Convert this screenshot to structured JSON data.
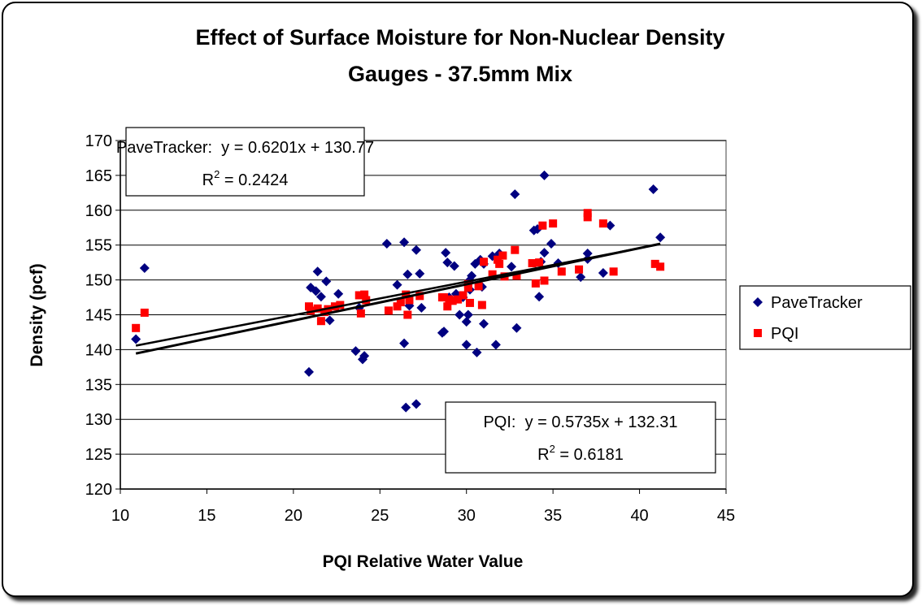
{
  "chart_data": {
    "type": "scatter",
    "title": [
      "Effect of Surface Moisture for Non-Nuclear Density",
      "Gauges - 37.5mm Mix"
    ],
    "x_label": "PQI Relative Water Value",
    "y_label": "Density (pcf)",
    "xlim": [
      10,
      45
    ],
    "xticks": [
      10,
      15,
      20,
      25,
      30,
      35,
      40,
      45
    ],
    "ylim": [
      120,
      170
    ],
    "yticks": [
      120,
      125,
      130,
      135,
      140,
      145,
      150,
      155,
      160,
      165,
      170
    ],
    "grid": true,
    "legend": "right",
    "trendline": "linear",
    "series": [
      {
        "name": "PaveTracker",
        "color": "#000080",
        "marker": "diamond",
        "x": [
          10.9,
          11.4,
          20.9,
          21.0,
          21.3,
          21.4,
          21.6,
          21.9,
          22.1,
          22.6,
          23.6,
          23.8,
          24.0,
          24.1,
          25.4,
          26.0,
          26.4,
          26.4,
          26.5,
          26.6,
          26.7,
          27.1,
          27.1,
          27.3,
          27.4,
          28.6,
          28.7,
          28.8,
          28.9,
          29.3,
          29.4,
          29.6,
          29.8,
          30.0,
          30.0,
          30.1,
          30.2,
          30.3,
          30.5,
          30.6,
          30.8,
          30.9,
          31.0,
          31.0,
          31.5,
          31.7,
          31.9,
          32.6,
          32.8,
          32.9,
          33.9,
          34.1,
          34.2,
          34.3,
          34.5,
          34.5,
          34.9,
          35.3,
          36.6,
          37.0,
          37.0,
          37.9,
          38.3,
          40.8,
          41.2,
          30.2,
          29.0
        ],
        "values": [
          141.5,
          151.7,
          136.8,
          148.9,
          148.4,
          151.2,
          147.6,
          149.8,
          144.2,
          148.0,
          139.8,
          146.0,
          138.6,
          139.1,
          155.2,
          149.3,
          155.4,
          140.9,
          131.7,
          150.8,
          146.3,
          154.3,
          132.2,
          150.9,
          146.0,
          142.4,
          142.6,
          153.9,
          152.5,
          152.0,
          148.0,
          145.0,
          147.5,
          140.7,
          144.0,
          145.0,
          148.6,
          150.6,
          152.3,
          139.6,
          152.9,
          149.0,
          143.7,
          152.3,
          153.4,
          140.7,
          153.8,
          151.9,
          162.3,
          143.1,
          157.1,
          157.3,
          147.6,
          152.6,
          165.0,
          153.9,
          155.2,
          152.4,
          150.4,
          153.0,
          153.8,
          151.0,
          157.8,
          163.0,
          156.1,
          150.0,
          147.5
        ]
      },
      {
        "name": "PQI",
        "color": "#ff0000",
        "marker": "square",
        "x": [
          10.9,
          11.4,
          20.9,
          21.0,
          21.4,
          21.6,
          21.8,
          22.0,
          22.4,
          22.7,
          23.8,
          23.9,
          24.1,
          24.2,
          25.5,
          26.0,
          26.2,
          26.5,
          26.6,
          26.7,
          27.3,
          28.6,
          28.7,
          28.9,
          29.0,
          29.2,
          29.5,
          30.1,
          30.1,
          30.2,
          30.7,
          30.9,
          31.0,
          31.5,
          31.8,
          31.9,
          32.1,
          32.2,
          32.8,
          32.9,
          33.8,
          34.0,
          34.2,
          34.4,
          34.5,
          35.0,
          35.5,
          36.5,
          37.0,
          37.0,
          37.9,
          38.5,
          40.9,
          41.2,
          29.8
        ],
        "values": [
          143.1,
          145.3,
          146.2,
          145.6,
          145.9,
          144.1,
          145.4,
          145.8,
          146.2,
          146.4,
          147.8,
          145.2,
          147.9,
          147.1,
          145.6,
          146.2,
          146.8,
          147.9,
          145.0,
          147.1,
          147.7,
          147.5,
          147.5,
          146.2,
          147.2,
          147.0,
          147.2,
          148.9,
          149.4,
          146.7,
          149.1,
          146.4,
          152.6,
          150.8,
          152.9,
          152.3,
          153.5,
          150.5,
          154.3,
          150.6,
          152.4,
          149.5,
          152.5,
          157.8,
          149.9,
          158.1,
          151.2,
          151.5,
          159.6,
          159.0,
          158.1,
          151.2,
          152.3,
          151.9,
          147.8
        ]
      }
    ],
    "annotations": [
      {
        "equation": "PaveTracker:  y = 0.6201x + 130.77",
        "r2_base": "R",
        "r2_exp": "2",
        "r2_rest": " = 0.2424"
      },
      {
        "equation": "PQI:  y = 0.5735x + 132.31",
        "r2_base": "R",
        "r2_exp": "2",
        "r2_rest": " = 0.6181"
      }
    ]
  }
}
